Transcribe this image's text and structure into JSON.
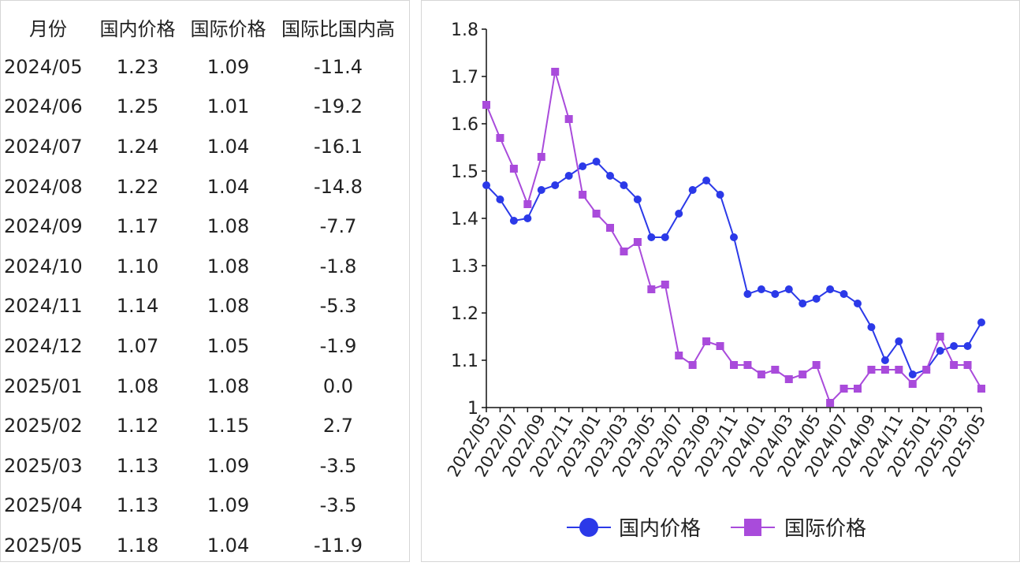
{
  "table": {
    "headers": [
      "月份",
      "国内价格",
      "国际价格",
      "国际比国内高"
    ],
    "rows": [
      [
        "2024/05",
        "1.23",
        "1.09",
        "-11.4"
      ],
      [
        "2024/06",
        "1.25",
        "1.01",
        "-19.2"
      ],
      [
        "2024/07",
        "1.24",
        "1.04",
        "-16.1"
      ],
      [
        "2024/08",
        "1.22",
        "1.04",
        "-14.8"
      ],
      [
        "2024/09",
        "1.17",
        "1.08",
        "-7.7"
      ],
      [
        "2024/10",
        "1.10",
        "1.08",
        "-1.8"
      ],
      [
        "2024/11",
        "1.14",
        "1.08",
        "-5.3"
      ],
      [
        "2024/12",
        "1.07",
        "1.05",
        "-1.9"
      ],
      [
        "2025/01",
        "1.08",
        "1.08",
        "0.0"
      ],
      [
        "2025/02",
        "1.12",
        "1.15",
        "2.7"
      ],
      [
        "2025/03",
        "1.13",
        "1.09",
        "-3.5"
      ],
      [
        "2025/04",
        "1.13",
        "1.09",
        "-3.5"
      ],
      [
        "2025/05",
        "1.18",
        "1.04",
        "-11.9"
      ]
    ]
  },
  "chart_data": {
    "type": "line",
    "x": [
      "2022/05",
      "2022/06",
      "2022/07",
      "2022/08",
      "2022/09",
      "2022/10",
      "2022/11",
      "2022/12",
      "2023/01",
      "2023/02",
      "2023/03",
      "2023/04",
      "2023/05",
      "2023/06",
      "2023/07",
      "2023/08",
      "2023/09",
      "2023/10",
      "2023/11",
      "2023/12",
      "2024/01",
      "2024/02",
      "2024/03",
      "2024/04",
      "2024/05",
      "2024/06",
      "2024/07",
      "2024/08",
      "2024/09",
      "2024/10",
      "2024/11",
      "2024/12",
      "2025/01",
      "2025/02",
      "2025/03",
      "2025/04",
      "2025/05"
    ],
    "tick_labels": [
      "2022/05",
      "2022/07",
      "2022/09",
      "2022/11",
      "2023/01",
      "2023/03",
      "2023/05",
      "2023/07",
      "2023/09",
      "2023/11",
      "2024/01",
      "2024/03",
      "2024/05",
      "2024/07",
      "2024/09",
      "2024/11",
      "2025/01",
      "2025/03",
      "2025/05"
    ],
    "series": [
      {
        "name": "国内价格",
        "marker": "circle",
        "color": "#2b39e8",
        "values": [
          1.47,
          1.44,
          1.395,
          1.4,
          1.46,
          1.47,
          1.49,
          1.51,
          1.52,
          1.49,
          1.47,
          1.44,
          1.36,
          1.36,
          1.41,
          1.46,
          1.48,
          1.45,
          1.36,
          1.24,
          1.25,
          1.24,
          1.25,
          1.22,
          1.23,
          1.25,
          1.24,
          1.22,
          1.17,
          1.1,
          1.14,
          1.07,
          1.08,
          1.12,
          1.13,
          1.13,
          1.18
        ]
      },
      {
        "name": "国际价格",
        "marker": "square",
        "color": "#a94bdb",
        "values": [
          1.64,
          1.57,
          1.505,
          1.43,
          1.53,
          1.71,
          1.61,
          1.45,
          1.41,
          1.38,
          1.33,
          1.35,
          1.25,
          1.26,
          1.11,
          1.09,
          1.14,
          1.13,
          1.09,
          1.09,
          1.07,
          1.08,
          1.06,
          1.07,
          1.09,
          1.01,
          1.04,
          1.04,
          1.08,
          1.08,
          1.08,
          1.05,
          1.08,
          1.15,
          1.09,
          1.09,
          1.04
        ]
      }
    ],
    "y_ticks": [
      "1",
      "1.1",
      "1.2",
      "1.3",
      "1.4",
      "1.5",
      "1.6",
      "1.7",
      "1.8"
    ],
    "ylim": [
      1,
      1.8
    ],
    "legend_position": "bottom",
    "grid": false
  }
}
